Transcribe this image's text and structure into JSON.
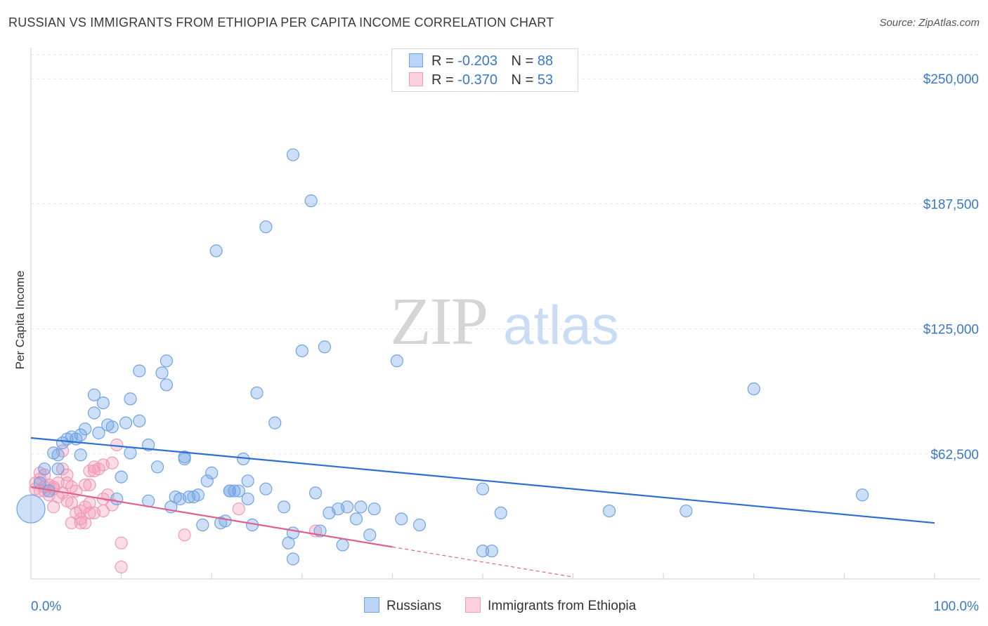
{
  "title": "RUSSIAN VS IMMIGRANTS FROM ETHIOPIA PER CAPITA INCOME CORRELATION CHART",
  "source": "Source: ZipAtlas.com",
  "watermark": {
    "zip": "ZIP",
    "atlas": "atlas"
  },
  "colors": {
    "blue": "#6fa3e6",
    "blue_line": "#2e6fcf",
    "pink": "#f29ab8",
    "pink_line": "#e0608d",
    "label": "#3b78c6"
  },
  "legend": {
    "r_label": "R =",
    "n_label": "N =",
    "series": [
      {
        "r": "-0.203",
        "n": "88"
      },
      {
        "r": "-0.370",
        "n": "53"
      }
    ]
  },
  "chart_data": {
    "type": "scatter",
    "title": "RUSSIAN VS IMMIGRANTS FROM ETHIOPIA PER CAPITA INCOME CORRELATION CHART",
    "xlabel": "",
    "ylabel": "Per Capita Income",
    "xlim": [
      0,
      100
    ],
    "ylim": [
      0,
      262000
    ],
    "x_tick_labels": [
      "0.0%",
      "100.0%"
    ],
    "y_ticks": [
      62500,
      125000,
      187500,
      250000
    ],
    "y_tick_labels": [
      "$62,500",
      "$125,000",
      "$187,500",
      "$250,000"
    ],
    "series": [
      {
        "name": "Russians",
        "trend": {
          "x": [
            0,
            100
          ],
          "y": [
            70500,
            28000
          ]
        },
        "points": [
          [
            0,
            35000
          ],
          [
            1.5,
            55000
          ],
          [
            2,
            44000
          ],
          [
            2.5,
            63000
          ],
          [
            3,
            62000
          ],
          [
            3.5,
            68000
          ],
          [
            4,
            70000
          ],
          [
            4.5,
            71000
          ],
          [
            5,
            70000
          ],
          [
            5.5,
            72000
          ],
          [
            6,
            75000
          ],
          [
            7,
            83000
          ],
          [
            7,
            92000
          ],
          [
            7.5,
            73000
          ],
          [
            8,
            88000
          ],
          [
            8.5,
            77000
          ],
          [
            9,
            76000
          ],
          [
            10,
            51000
          ],
          [
            10.5,
            78000
          ],
          [
            11,
            90000
          ],
          [
            11,
            63000
          ],
          [
            12,
            104000
          ],
          [
            12,
            79000
          ],
          [
            13,
            39000
          ],
          [
            13,
            67000
          ],
          [
            14,
            56000
          ],
          [
            14.5,
            103000
          ],
          [
            15,
            97000
          ],
          [
            15,
            109000
          ],
          [
            15.5,
            36000
          ],
          [
            16,
            41000
          ],
          [
            16.5,
            40000
          ],
          [
            17,
            61000
          ],
          [
            17,
            60000
          ],
          [
            17.5,
            41000
          ],
          [
            18,
            41000
          ],
          [
            18.5,
            42000
          ],
          [
            19,
            27000
          ],
          [
            19.5,
            49000
          ],
          [
            20,
            53000
          ],
          [
            20.5,
            164000
          ],
          [
            21,
            28000
          ],
          [
            21.5,
            29000
          ],
          [
            22,
            44000
          ],
          [
            22.5,
            44000
          ],
          [
            23,
            44000
          ],
          [
            23.5,
            60000
          ],
          [
            24,
            49000
          ],
          [
            24,
            40000
          ],
          [
            24.5,
            27000
          ],
          [
            25,
            93000
          ],
          [
            26,
            45000
          ],
          [
            26,
            176000
          ],
          [
            27,
            78000
          ],
          [
            28,
            36000
          ],
          [
            28.5,
            18000
          ],
          [
            29,
            212000
          ],
          [
            29,
            10000
          ],
          [
            29,
            23000
          ],
          [
            30,
            114000
          ],
          [
            31,
            189000
          ],
          [
            31.5,
            43000
          ],
          [
            32,
            24000
          ],
          [
            32.5,
            116000
          ],
          [
            33,
            33000
          ],
          [
            34,
            35000
          ],
          [
            34.5,
            17000
          ],
          [
            35,
            36000
          ],
          [
            36,
            30000
          ],
          [
            36.5,
            36000
          ],
          [
            37.5,
            22000
          ],
          [
            38,
            35000
          ],
          [
            40.5,
            109000
          ],
          [
            41,
            30000
          ],
          [
            43,
            27000
          ],
          [
            50,
            14000
          ],
          [
            50,
            45000
          ],
          [
            51,
            14000
          ],
          [
            52,
            33000
          ],
          [
            64,
            34000
          ],
          [
            72.5,
            34000
          ],
          [
            80,
            95000
          ],
          [
            92,
            42000
          ],
          [
            3,
            55000
          ],
          [
            1,
            48000
          ],
          [
            22,
            44000
          ],
          [
            5.5,
            62000
          ],
          [
            9.5,
            40000
          ]
        ]
      },
      {
        "name": "Immigrants from Ethiopia",
        "trend": {
          "x": [
            0,
            40
          ],
          "y": [
            46000,
            16000
          ]
        },
        "trend_extension": {
          "x": [
            40,
            60
          ],
          "y": [
            16000,
            1000
          ]
        },
        "points": [
          [
            0.5,
            48000
          ],
          [
            0.5,
            45000
          ],
          [
            1,
            53000
          ],
          [
            1,
            50000
          ],
          [
            1.5,
            46000
          ],
          [
            1.5,
            44000
          ],
          [
            2,
            47000
          ],
          [
            2,
            42000
          ],
          [
            2.5,
            45000
          ],
          [
            2.5,
            36000
          ],
          [
            3,
            48000
          ],
          [
            3,
            41000
          ],
          [
            3.5,
            55000
          ],
          [
            3.5,
            43000
          ],
          [
            4,
            52000
          ],
          [
            4,
            48000
          ],
          [
            4,
            39000
          ],
          [
            4.5,
            38000
          ],
          [
            4.5,
            28000
          ],
          [
            5,
            33000
          ],
          [
            5,
            44000
          ],
          [
            5.5,
            34000
          ],
          [
            5.5,
            30000
          ],
          [
            6,
            47000
          ],
          [
            6,
            36000
          ],
          [
            6,
            28000
          ],
          [
            6.5,
            47000
          ],
          [
            6.5,
            38000
          ],
          [
            6.5,
            54000
          ],
          [
            7,
            56000
          ],
          [
            7,
            54000
          ],
          [
            7,
            33000
          ],
          [
            7.5,
            55000
          ],
          [
            8,
            57000
          ],
          [
            8,
            40000
          ],
          [
            8,
            34000
          ],
          [
            8.5,
            42000
          ],
          [
            9,
            58000
          ],
          [
            9,
            37000
          ],
          [
            9.5,
            67000
          ],
          [
            10,
            18000
          ],
          [
            10,
            6000
          ],
          [
            17,
            22000
          ],
          [
            23,
            35000
          ],
          [
            3.5,
            64000
          ],
          [
            2.5,
            46000
          ],
          [
            1.5,
            52000
          ],
          [
            4.5,
            46000
          ],
          [
            5.5,
            28000
          ],
          [
            1,
            44000
          ],
          [
            31.5,
            24000
          ],
          [
            6.5,
            33000
          ],
          [
            2,
            47000
          ]
        ]
      }
    ]
  },
  "bottom_legend": {
    "russians": "Russians",
    "ethiopia": "Immigrants from Ethiopia"
  }
}
